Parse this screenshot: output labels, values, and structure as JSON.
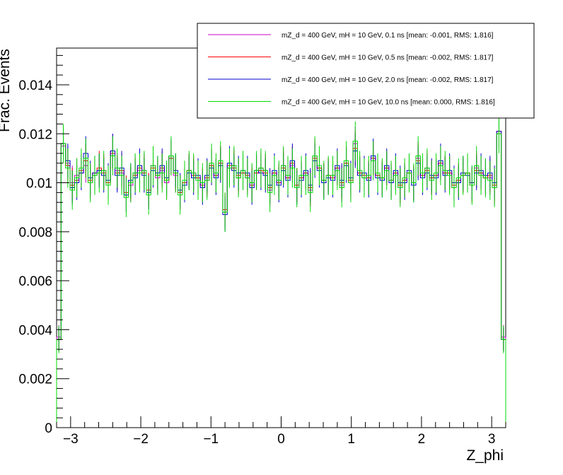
{
  "chart_data": {
    "type": "histogram-line",
    "xlabel": "Z_phi",
    "ylabel": "Frac. Events",
    "xlim": [
      -3.2,
      3.2
    ],
    "ylim": [
      0,
      0.0155
    ],
    "xticks": [
      -3,
      -2,
      -1,
      0,
      1,
      2,
      3
    ],
    "xtick_labels": [
      "−3",
      "−2",
      "−1",
      "0",
      "1",
      "2",
      "3"
    ],
    "yticks": [
      0,
      0.002,
      0.004,
      0.006,
      0.008,
      0.01,
      0.012,
      0.014
    ],
    "ytick_labels": [
      "0",
      "0.002",
      "0.004",
      "0.006",
      "0.008",
      "0.01",
      "0.012",
      "0.014"
    ],
    "bins": 100,
    "legend_position": "top-right",
    "grid": false,
    "series": [
      {
        "name": "mZ_d = 400 GeV, mH = 10 GeV, 0.1 ns [mean: -0.001, RMS: 1.816]",
        "color": "#cc00cc",
        "error": 0.0007,
        "values": [
          0.0037,
          0.0115,
          0.0108,
          0.01,
          0.0103,
          0.0104,
          0.0107,
          0.01,
          0.0103,
          0.0105,
          0.0105,
          0.01,
          0.0113,
          0.0105,
          0.0104,
          0.0095,
          0.0099,
          0.0104,
          0.0105,
          0.0105,
          0.0097,
          0.0107,
          0.0102,
          0.0105,
          0.01,
          0.011,
          0.0103,
          0.0096,
          0.01,
          0.0105,
          0.0104,
          0.0102,
          0.0099,
          0.0101,
          0.0107,
          0.0103,
          0.0108,
          0.0088,
          0.0106,
          0.0107,
          0.0102,
          0.0104,
          0.0102,
          0.01,
          0.0104,
          0.0106,
          0.0105,
          0.0097,
          0.0104,
          0.0101,
          0.0107,
          0.0102,
          0.0107,
          0.0099,
          0.0102,
          0.0104,
          0.0097,
          0.0111,
          0.0106,
          0.0101,
          0.0103,
          0.0103,
          0.0106,
          0.0099,
          0.0108,
          0.01,
          0.0116,
          0.0104,
          0.0102,
          0.0102,
          0.011,
          0.0103,
          0.0102,
          0.0106,
          0.0101,
          0.0104,
          0.0098,
          0.0101,
          0.0104,
          0.01,
          0.011,
          0.0103,
          0.0106,
          0.0102,
          0.0103,
          0.0108,
          0.0104,
          0.0104,
          0.0098,
          0.0101,
          0.0103,
          0.0104,
          0.0099,
          0.0106,
          0.0104,
          0.0102,
          0.0102,
          0.0098,
          0.012,
          0.0037
        ]
      },
      {
        "name": "mZ_d = 400 GeV, mH = 10 GeV, 0.5 ns [mean: -0.002, RMS: 1.817]",
        "color": "#ff0000",
        "error": 0.0007,
        "values": [
          0.0036,
          0.0116,
          0.0107,
          0.0099,
          0.0101,
          0.0105,
          0.0109,
          0.0101,
          0.0104,
          0.0106,
          0.0104,
          0.01,
          0.0112,
          0.0104,
          0.0105,
          0.0096,
          0.01,
          0.0103,
          0.0106,
          0.0104,
          0.0097,
          0.0106,
          0.0103,
          0.0106,
          0.0101,
          0.011,
          0.0104,
          0.0096,
          0.01,
          0.0105,
          0.0103,
          0.0102,
          0.0099,
          0.0102,
          0.0107,
          0.0103,
          0.0108,
          0.0089,
          0.0107,
          0.0106,
          0.0103,
          0.0104,
          0.0103,
          0.0099,
          0.0104,
          0.0105,
          0.0104,
          0.0098,
          0.0104,
          0.01,
          0.0106,
          0.0102,
          0.0108,
          0.0099,
          0.0102,
          0.0104,
          0.0098,
          0.011,
          0.0106,
          0.0101,
          0.0103,
          0.0102,
          0.0106,
          0.01,
          0.0108,
          0.0101,
          0.0114,
          0.0104,
          0.0103,
          0.0102,
          0.011,
          0.0103,
          0.0102,
          0.0106,
          0.0101,
          0.0104,
          0.0099,
          0.0101,
          0.0104,
          0.01,
          0.0109,
          0.0103,
          0.0105,
          0.0102,
          0.0103,
          0.0108,
          0.0104,
          0.0104,
          0.0099,
          0.0101,
          0.0103,
          0.0104,
          0.0099,
          0.0105,
          0.0104,
          0.0102,
          0.0103,
          0.0099,
          0.0121,
          0.0036
        ]
      },
      {
        "name": "mZ_d = 400 GeV, mH = 10 GeV, 2.0 ns [mean: -0.002, RMS: 1.817]",
        "color": "#0000cc",
        "error": 0.0007,
        "values": [
          0.0036,
          0.0116,
          0.0109,
          0.0098,
          0.01,
          0.0104,
          0.0112,
          0.0102,
          0.0104,
          0.0105,
          0.0103,
          0.0101,
          0.0113,
          0.0103,
          0.0106,
          0.0095,
          0.0101,
          0.0102,
          0.0107,
          0.0103,
          0.0096,
          0.0105,
          0.0104,
          0.0107,
          0.0102,
          0.0111,
          0.0105,
          0.0097,
          0.0099,
          0.0104,
          0.0102,
          0.0103,
          0.0098,
          0.0103,
          0.0106,
          0.0102,
          0.0107,
          0.0087,
          0.0108,
          0.0105,
          0.0104,
          0.0105,
          0.0104,
          0.0098,
          0.0105,
          0.0104,
          0.0103,
          0.0099,
          0.0105,
          0.0099,
          0.0105,
          0.0101,
          0.0109,
          0.0098,
          0.0101,
          0.0105,
          0.0099,
          0.0109,
          0.0105,
          0.01,
          0.0102,
          0.0101,
          0.0107,
          0.0101,
          0.0107,
          0.0102,
          0.0113,
          0.0103,
          0.0104,
          0.0101,
          0.0111,
          0.0102,
          0.0101,
          0.0107,
          0.01,
          0.0105,
          0.01,
          0.01,
          0.0105,
          0.0099,
          0.0108,
          0.0102,
          0.0104,
          0.0103,
          0.0102,
          0.0109,
          0.0103,
          0.0105,
          0.01,
          0.01,
          0.0104,
          0.0103,
          0.01,
          0.0104,
          0.0105,
          0.0103,
          0.0104,
          0.01,
          0.0121,
          0.0036
        ]
      },
      {
        "name": "mZ_d = 400 GeV, mH = 10 GeV, 10.0 ns [mean: 0.000, RMS: 1.816]",
        "color": "#00dd00",
        "error": 0.0008,
        "values": [
          0.0036,
          0.0116,
          0.0106,
          0.0097,
          0.0102,
          0.0106,
          0.011,
          0.01,
          0.0103,
          0.0104,
          0.0105,
          0.0099,
          0.0111,
          0.0106,
          0.0103,
          0.0094,
          0.01,
          0.0104,
          0.0104,
          0.0105,
          0.0095,
          0.0107,
          0.0103,
          0.0104,
          0.0101,
          0.0111,
          0.0104,
          0.0095,
          0.0101,
          0.0105,
          0.0104,
          0.0101,
          0.01,
          0.0101,
          0.0108,
          0.0104,
          0.0109,
          0.0088,
          0.0106,
          0.0107,
          0.0102,
          0.0105,
          0.0102,
          0.01,
          0.0105,
          0.0106,
          0.0105,
          0.0096,
          0.0103,
          0.0101,
          0.0107,
          0.0103,
          0.0106,
          0.0098,
          0.0103,
          0.0103,
          0.0096,
          0.0111,
          0.0107,
          0.0101,
          0.0103,
          0.0103,
          0.0105,
          0.0098,
          0.0109,
          0.01,
          0.0117,
          0.0105,
          0.0102,
          0.0103,
          0.0109,
          0.0104,
          0.0102,
          0.0105,
          0.0101,
          0.0103,
          0.0098,
          0.0102,
          0.0104,
          0.01,
          0.0111,
          0.0104,
          0.0106,
          0.0101,
          0.0104,
          0.0107,
          0.0105,
          0.0103,
          0.0098,
          0.0102,
          0.0103,
          0.0104,
          0.0099,
          0.0107,
          0.0103,
          0.0102,
          0.0101,
          0.0098,
          0.012,
          0.0036
        ]
      }
    ]
  }
}
